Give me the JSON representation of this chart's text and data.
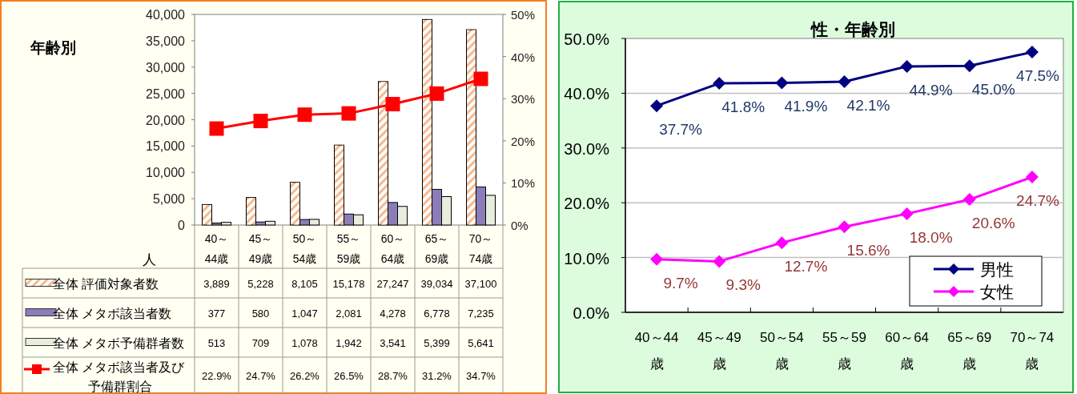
{
  "chart_data": [
    {
      "type": "bar",
      "title": "年齢別",
      "ylabel": "人",
      "categories": [
        "40～44歳",
        "45～49歳",
        "50～54歳",
        "55～59歳",
        "60～64歳",
        "65～69歳",
        "70～74歳"
      ],
      "series": [
        {
          "name": "全体 評価対象者数",
          "color": "#f8b88a",
          "values": [
            3889,
            5228,
            8105,
            15178,
            27247,
            39034,
            37100
          ],
          "value_labels": [
            "3,889",
            "5,228",
            "8,105",
            "15,178",
            "27,247",
            "39,034",
            "37,100"
          ]
        },
        {
          "name": "全体 メタボ該当者数",
          "color": "#8c7db8",
          "values": [
            377,
            580,
            1047,
            2081,
            4278,
            6778,
            7235
          ],
          "value_labels": [
            "377",
            "580",
            "1,047",
            "2,081",
            "4,278",
            "6,778",
            "7,235"
          ]
        },
        {
          "name": "全体 メタボ予備群者数",
          "color": "#e8eedc",
          "values": [
            513,
            709,
            1078,
            1942,
            3541,
            5399,
            5641
          ],
          "value_labels": [
            "513",
            "709",
            "1,078",
            "1,942",
            "3,541",
            "5,399",
            "5,641"
          ]
        },
        {
          "name": "全体 メタボ該当者及び予備群割合",
          "type": "line",
          "axis": "y2",
          "marker": "square",
          "color": "#ff0000",
          "values": [
            22.9,
            24.7,
            26.2,
            26.5,
            28.7,
            31.2,
            34.7
          ],
          "value_labels": [
            "22.9%",
            "24.7%",
            "26.2%",
            "26.5%",
            "28.7%",
            "31.2%",
            "34.7%"
          ]
        }
      ],
      "ylim": [
        0,
        40000
      ],
      "yticks": [
        0,
        {
          "value": 5000,
          "label": "5,000"
        },
        {
          "value": 10000,
          "label": "10,000"
        },
        {
          "value": 15000,
          "label": "15,000"
        },
        {
          "value": 20000,
          "label": "20,000"
        },
        {
          "value": 25000,
          "label": "25,000"
        },
        {
          "value": 30000,
          "label": "30,000"
        },
        {
          "value": 35000,
          "label": "35,000"
        },
        {
          "value": 40000,
          "label": "40,000"
        }
      ],
      "y2lim": [
        0,
        50
      ],
      "y2ticks": [
        {
          "value": 0,
          "label": "0%"
        },
        {
          "value": 10,
          "label": "10%"
        },
        {
          "value": 20,
          "label": "20%"
        },
        {
          "value": 30,
          "label": "30%"
        },
        {
          "value": 40,
          "label": "40%"
        },
        {
          "value": 50,
          "label": "50%"
        }
      ],
      "legend": "bottom"
    },
    {
      "type": "line",
      "title": "性・年齢別",
      "categories": [
        "40～44歳",
        "45～49歳",
        "50～54歳",
        "55～59歳",
        "60～64歳",
        "65～69歳",
        "70～74歳"
      ],
      "series": [
        {
          "name": "男性",
          "color": "#000080",
          "values": [
            37.7,
            41.8,
            41.9,
            42.1,
            44.9,
            45.0,
            47.5
          ],
          "value_labels": [
            "37.7%",
            "41.8%",
            "41.9%",
            "42.1%",
            "44.9%",
            "45.0%",
            "47.5%"
          ]
        },
        {
          "name": "女性",
          "color": "#ff00ff",
          "values": [
            9.7,
            9.3,
            12.7,
            15.6,
            18.0,
            20.6,
            24.7
          ],
          "value_labels": [
            "9.7%",
            "9.3%",
            "12.7%",
            "15.6%",
            "18.0%",
            "20.6%",
            "24.7%"
          ]
        }
      ],
      "ylim": [
        0,
        50
      ],
      "yticks": [
        {
          "value": 0,
          "label": "0.0%"
        },
        {
          "value": 10,
          "label": "10.0%"
        },
        {
          "value": 20,
          "label": "20.0%"
        },
        {
          "value": 30,
          "label": "30.0%"
        },
        {
          "value": 40,
          "label": "40.0%"
        },
        {
          "value": 50,
          "label": "50.0%"
        }
      ],
      "grid": "y",
      "marker": "diamond",
      "legend": "bottom right"
    }
  ]
}
